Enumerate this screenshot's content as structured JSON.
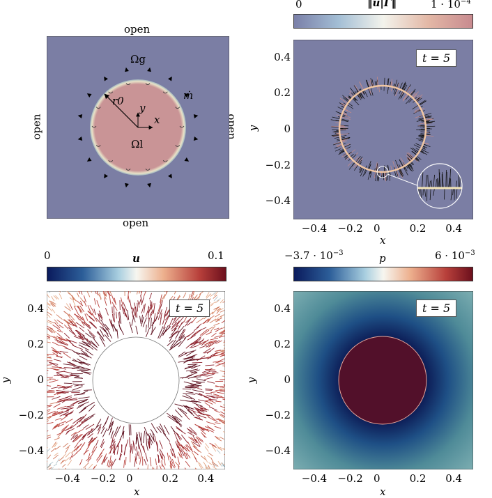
{
  "panel_a": {
    "top_label": "open",
    "bottom_label": "open",
    "left_label": "open",
    "right_label": "open",
    "omega_g": "Ωg",
    "omega_l": "Ωl",
    "r0": "r0",
    "mdot": "ṁ",
    "x_axis": "x",
    "y_axis": "y",
    "colors": {
      "gas": "#7b7ea4",
      "liquid": "#c99496"
    }
  },
  "panel_b": {
    "colorbar_min": "0",
    "colorbar_max": "1 · 10",
    "colorbar_max_exp": "−4",
    "colorbar_title": "‖u|Γ‖",
    "time_label": "t = 5",
    "xlabel": "x",
    "ylabel": "y",
    "xticks": [
      "−0.4",
      "−0.2",
      "0",
      "0.2",
      "0.4"
    ],
    "yticks": [
      "0.4",
      "0.2",
      "0",
      "−0.2",
      "−0.4"
    ]
  },
  "panel_c": {
    "colorbar_min": "0",
    "colorbar_max": "0.1",
    "colorbar_title": "u",
    "time_label": "t = 5",
    "xlabel": "x",
    "ylabel": "y",
    "xticks": [
      "−0.4",
      "−0.2",
      "0",
      "0.2",
      "0.4"
    ],
    "yticks": [
      "0.4",
      "0.2",
      "0",
      "−0.2",
      "−0.4"
    ]
  },
  "panel_d": {
    "colorbar_min": "−3.7 · 10",
    "colorbar_min_exp": "−3",
    "colorbar_max": "6 · 10",
    "colorbar_max_exp": "−3",
    "colorbar_title": "p",
    "time_label": "t = 5",
    "xlabel": "x",
    "ylabel": "y",
    "xticks": [
      "−0.4",
      "−0.2",
      "0",
      "0.2",
      "0.4"
    ],
    "yticks": [
      "0.4",
      "0.2",
      "0",
      "−0.2",
      "−0.4"
    ]
  }
}
